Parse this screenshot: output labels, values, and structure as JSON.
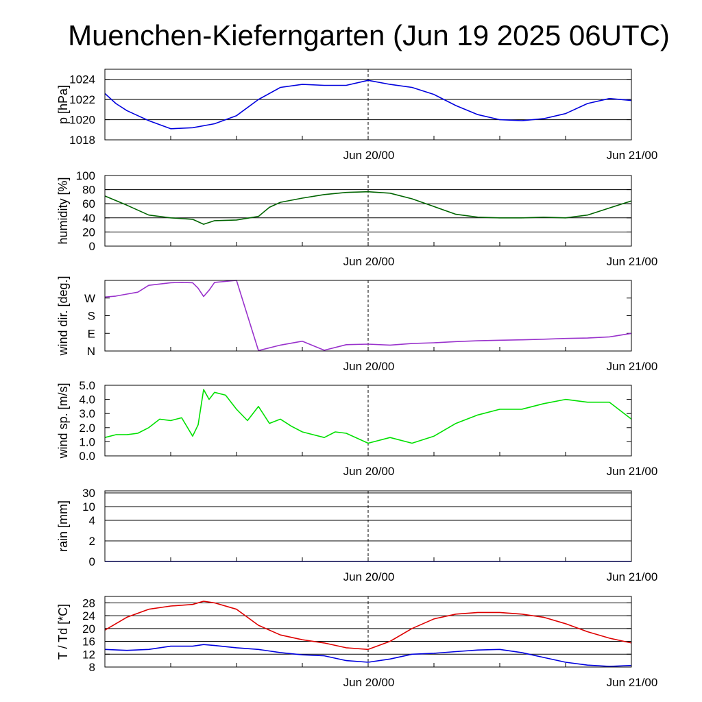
{
  "title": "Muenchen-Kieferngarten (Jun 19 2025 06UTC)",
  "chart_data": [
    {
      "id": "pressure",
      "type": "line",
      "ylabel": "p [hPa]",
      "x_ticks": [
        "Jun 20/00",
        "Jun 21/00"
      ],
      "ylim": [
        1018,
        1025
      ],
      "yticks": [
        1018,
        1020,
        1022,
        1024
      ],
      "grid_y": [
        1020,
        1022,
        1024
      ],
      "color": "#0000dd",
      "x": [
        0,
        1,
        2,
        3,
        4,
        6,
        8,
        10,
        12,
        14,
        16,
        18,
        20,
        22,
        24,
        26,
        28,
        30,
        32,
        34,
        36,
        38,
        40,
        42,
        44,
        46,
        48
      ],
      "values": [
        1022.6,
        1021.6,
        1020.9,
        1020.4,
        1019.9,
        1019.1,
        1019.2,
        1019.6,
        1020.4,
        1022.0,
        1023.2,
        1023.5,
        1023.4,
        1023.4,
        1023.9,
        1023.5,
        1023.2,
        1022.5,
        1021.4,
        1020.5,
        1020.0,
        1019.9,
        1020.1,
        1020.6,
        1021.6,
        1022.1,
        1021.9
      ]
    },
    {
      "id": "humidity",
      "type": "line",
      "ylabel": "humidity [%]",
      "x_ticks": [
        "Jun 20/00",
        "Jun 21/00"
      ],
      "ylim": [
        0,
        100
      ],
      "yticks": [
        0,
        20,
        40,
        60,
        80,
        100
      ],
      "grid_y": [
        20,
        40,
        60,
        80
      ],
      "color": "#006400",
      "x": [
        0,
        2,
        4,
        6,
        8,
        9,
        10,
        12,
        14,
        15,
        16,
        18,
        20,
        22,
        24,
        26,
        28,
        30,
        32,
        34,
        36,
        38,
        40,
        42,
        44,
        46,
        48
      ],
      "values": [
        71,
        58,
        44,
        40,
        38,
        31,
        36,
        37,
        42,
        55,
        62,
        68,
        73,
        76,
        77,
        75,
        67,
        56,
        45,
        41,
        40,
        40,
        41,
        40,
        44,
        54,
        64
      ]
    },
    {
      "id": "wind_dir",
      "type": "line",
      "ylabel": "wind dir. [deg.]",
      "x_ticks": [
        "Jun 20/00",
        "Jun 21/00"
      ],
      "ylim": [
        0,
        360
      ],
      "ytick_labels": [
        "N",
        "E",
        "S",
        "W"
      ],
      "yticks": [
        0,
        90,
        180,
        270
      ],
      "color": "#9932cc",
      "x": [
        0,
        1,
        2,
        3,
        4,
        6,
        7,
        8,
        8.5,
        9,
        9.5,
        10,
        12,
        14,
        16,
        18,
        20,
        22,
        24,
        26,
        28,
        30,
        32,
        34,
        36,
        38,
        40,
        42,
        44,
        46,
        48
      ],
      "values": [
        275,
        280,
        290,
        300,
        335,
        348,
        350,
        348,
        320,
        278,
        310,
        350,
        360,
        2,
        30,
        50,
        4,
        32,
        35,
        30,
        38,
        42,
        48,
        52,
        55,
        57,
        60,
        64,
        66,
        72,
        90
      ]
    },
    {
      "id": "wind_speed",
      "type": "line",
      "ylabel": "wind sp. [m/s]",
      "x_ticks": [
        "Jun 20/00",
        "Jun 21/00"
      ],
      "ylim": [
        0,
        5
      ],
      "yticks": [
        0.0,
        1.0,
        2.0,
        3.0,
        4.0,
        5.0
      ],
      "color": "#00e000",
      "x": [
        0,
        1,
        2,
        3,
        4,
        5,
        6,
        7,
        8,
        8.5,
        9,
        9.5,
        10,
        11,
        12,
        13,
        14,
        15,
        16,
        17,
        18,
        19,
        20,
        21,
        22,
        24,
        26,
        28,
        30,
        32,
        34,
        36,
        38,
        40,
        42,
        44,
        46,
        48
      ],
      "values": [
        1.3,
        1.5,
        1.5,
        1.6,
        2.0,
        2.6,
        2.5,
        2.7,
        1.4,
        2.2,
        4.7,
        4.0,
        4.5,
        4.3,
        3.3,
        2.5,
        3.5,
        2.3,
        2.6,
        2.1,
        1.7,
        1.5,
        1.3,
        1.7,
        1.6,
        0.9,
        1.3,
        0.9,
        1.4,
        2.3,
        2.9,
        3.3,
        3.3,
        3.7,
        4.0,
        3.8,
        3.8,
        2.6
      ]
    },
    {
      "id": "rain",
      "type": "line",
      "ylabel": "rain [mm]",
      "x_ticks": [
        "Jun 20/00",
        "Jun 21/00"
      ],
      "yticks_labels": [
        "0",
        "2",
        "4",
        "10",
        "30"
      ],
      "color": "#0000dd",
      "x": [
        0,
        48
      ],
      "values": [
        0,
        0
      ]
    },
    {
      "id": "temperature",
      "type": "line",
      "ylabel": "T / Td [*C]",
      "x_ticks": [
        "Jun 20/00",
        "Jun 21/00"
      ],
      "ylim": [
        8,
        30
      ],
      "yticks": [
        8,
        12,
        16,
        20,
        24,
        28
      ],
      "series": [
        {
          "color": "#dd0000",
          "x": [
            0,
            2,
            4,
            6,
            8,
            9,
            10,
            12,
            14,
            16,
            18,
            20,
            22,
            24,
            26,
            28,
            30,
            32,
            34,
            36,
            38,
            40,
            42,
            44,
            46,
            48
          ],
          "values": [
            19.5,
            23.5,
            26,
            27,
            27.5,
            28.5,
            28,
            26,
            21,
            18,
            16.5,
            15.5,
            14,
            13.5,
            16,
            20,
            23,
            24.5,
            25,
            25,
            24.5,
            23.5,
            21.5,
            19,
            17,
            15.5
          ]
        },
        {
          "color": "#0000dd",
          "x": [
            0,
            2,
            4,
            6,
            8,
            9,
            10,
            12,
            14,
            16,
            18,
            20,
            22,
            24,
            26,
            28,
            30,
            32,
            34,
            36,
            38,
            40,
            42,
            44,
            46,
            48
          ],
          "values": [
            13.5,
            13.2,
            13.5,
            14.5,
            14.5,
            15,
            14.7,
            14,
            13.5,
            12.5,
            11.8,
            11.5,
            10,
            9.5,
            10.5,
            12,
            12.3,
            12.8,
            13.3,
            13.5,
            12.5,
            11,
            9.5,
            8.6,
            8.2,
            8.5
          ]
        }
      ]
    }
  ]
}
